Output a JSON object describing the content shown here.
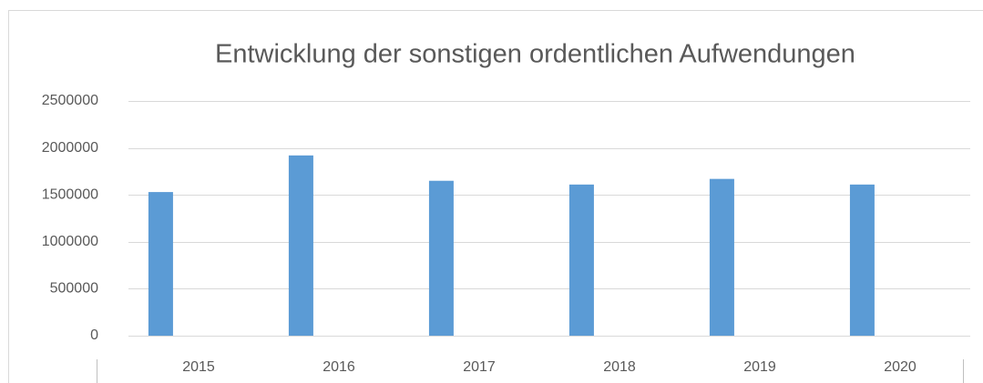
{
  "chart_data": {
    "type": "bar",
    "title": "Entwicklung der sonstigen ordentlichen Aufwendungen",
    "categories": [
      "2015",
      "2016",
      "2017",
      "2018",
      "2019",
      "2020"
    ],
    "values": [
      1530000,
      1920000,
      1650000,
      1610000,
      1670000,
      1610000
    ],
    "color": "#5b9bd5",
    "ylim": [
      0,
      2500000
    ],
    "yticks": [
      0,
      500000,
      1000000,
      1500000,
      2000000,
      2500000
    ],
    "grid": true
  }
}
